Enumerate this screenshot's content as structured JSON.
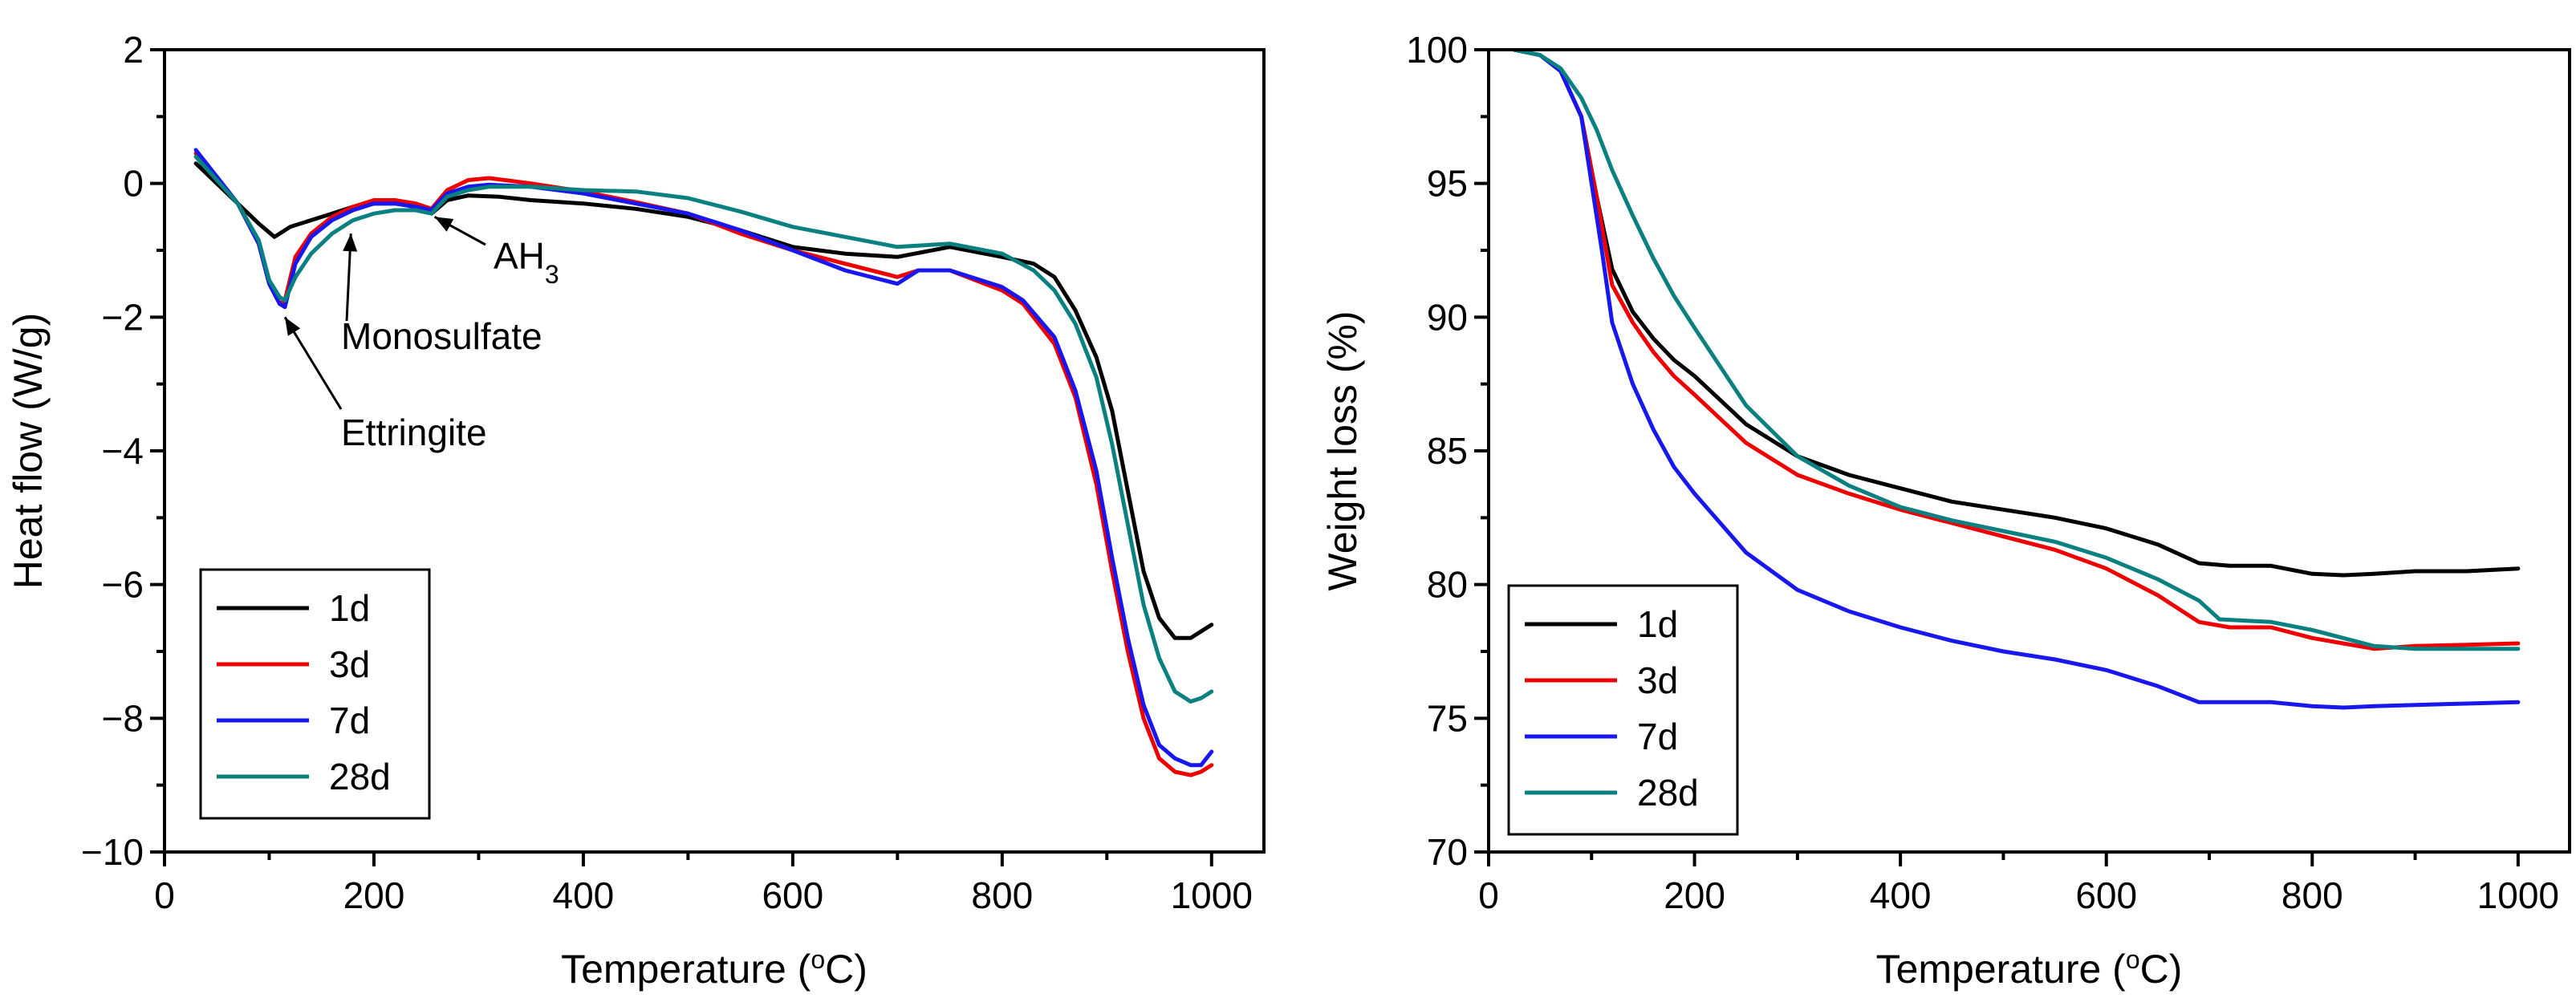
{
  "chart_data": [
    {
      "type": "line",
      "xlabel": "Temperature (°C)",
      "xlabel_pre": "Temperature (",
      "xlabel_sup": "o",
      "xlabel_post": "C)",
      "ylabel": "Heat flow (W/g)",
      "xlim": [
        0,
        1050
      ],
      "ylim": [
        -10,
        2
      ],
      "xticks": [
        0,
        200,
        400,
        600,
        800,
        1000
      ],
      "yticks": [
        2,
        0,
        -2,
        -4,
        -6,
        -8,
        -10
      ],
      "ytick_labels": [
        "2",
        "0",
        "−2",
        "−4",
        "−6",
        "−8",
        "−10"
      ],
      "legend_position": "bottom-left",
      "series": [
        {
          "name": "1d",
          "color": "#000000",
          "x": [
            30,
            50,
            70,
            90,
            105,
            120,
            140,
            160,
            180,
            200,
            220,
            240,
            255,
            270,
            290,
            320,
            350,
            400,
            450,
            500,
            550,
            600,
            650,
            700,
            750,
            800,
            830,
            850,
            870,
            890,
            905,
            920,
            935,
            950,
            965,
            980,
            990,
            1000
          ],
          "y": [
            0.3,
            0.0,
            -0.3,
            -0.6,
            -0.8,
            -0.65,
            -0.55,
            -0.45,
            -0.35,
            -0.3,
            -0.3,
            -0.35,
            -0.45,
            -0.25,
            -0.18,
            -0.2,
            -0.25,
            -0.3,
            -0.38,
            -0.5,
            -0.7,
            -0.95,
            -1.05,
            -1.1,
            -0.95,
            -1.1,
            -1.2,
            -1.4,
            -1.9,
            -2.6,
            -3.4,
            -4.6,
            -5.8,
            -6.5,
            -6.8,
            -6.8,
            -6.7,
            -6.6
          ]
        },
        {
          "name": "3d",
          "color": "#ee0000",
          "x": [
            30,
            50,
            70,
            90,
            100,
            110,
            115,
            125,
            140,
            160,
            180,
            200,
            220,
            240,
            255,
            270,
            290,
            310,
            350,
            400,
            450,
            500,
            550,
            600,
            650,
            700,
            720,
            750,
            800,
            820,
            850,
            870,
            890,
            905,
            920,
            935,
            950,
            965,
            980,
            990,
            1000
          ],
          "y": [
            0.45,
            0.1,
            -0.3,
            -0.9,
            -1.5,
            -1.8,
            -1.75,
            -1.1,
            -0.75,
            -0.5,
            -0.35,
            -0.25,
            -0.25,
            -0.3,
            -0.38,
            -0.1,
            0.05,
            0.08,
            0.0,
            -0.12,
            -0.28,
            -0.45,
            -0.75,
            -1.0,
            -1.2,
            -1.4,
            -1.3,
            -1.3,
            -1.6,
            -1.8,
            -2.4,
            -3.2,
            -4.5,
            -5.8,
            -7.0,
            -8.0,
            -8.6,
            -8.8,
            -8.85,
            -8.8,
            -8.7
          ]
        },
        {
          "name": "7d",
          "color": "#1818ee",
          "x": [
            30,
            50,
            70,
            90,
            100,
            110,
            115,
            125,
            140,
            160,
            180,
            200,
            220,
            240,
            255,
            270,
            290,
            310,
            350,
            400,
            450,
            500,
            550,
            600,
            650,
            700,
            720,
            750,
            800,
            820,
            850,
            870,
            890,
            905,
            920,
            935,
            950,
            965,
            980,
            990,
            1000
          ],
          "y": [
            0.5,
            0.1,
            -0.3,
            -0.9,
            -1.5,
            -1.8,
            -1.85,
            -1.2,
            -0.8,
            -0.55,
            -0.4,
            -0.3,
            -0.3,
            -0.35,
            -0.4,
            -0.15,
            -0.05,
            -0.02,
            -0.05,
            -0.15,
            -0.3,
            -0.45,
            -0.7,
            -1.0,
            -1.3,
            -1.5,
            -1.3,
            -1.3,
            -1.55,
            -1.75,
            -2.3,
            -3.1,
            -4.3,
            -5.6,
            -6.8,
            -7.8,
            -8.4,
            -8.6,
            -8.7,
            -8.7,
            -8.5
          ]
        },
        {
          "name": "28d",
          "color": "#0a8080",
          "x": [
            30,
            50,
            70,
            90,
            100,
            110,
            115,
            125,
            140,
            160,
            180,
            200,
            220,
            240,
            255,
            270,
            290,
            310,
            350,
            400,
            450,
            500,
            550,
            600,
            650,
            700,
            750,
            800,
            830,
            850,
            870,
            890,
            905,
            920,
            935,
            950,
            965,
            980,
            990,
            1000
          ],
          "y": [
            0.4,
            0.05,
            -0.3,
            -0.85,
            -1.45,
            -1.7,
            -1.75,
            -1.4,
            -1.05,
            -0.75,
            -0.55,
            -0.45,
            -0.4,
            -0.4,
            -0.45,
            -0.2,
            -0.1,
            -0.05,
            -0.05,
            -0.1,
            -0.12,
            -0.22,
            -0.42,
            -0.65,
            -0.8,
            -0.95,
            -0.9,
            -1.05,
            -1.3,
            -1.6,
            -2.1,
            -2.9,
            -3.9,
            -5.1,
            -6.3,
            -7.1,
            -7.6,
            -7.75,
            -7.7,
            -7.6
          ]
        }
      ],
      "annotations": [
        {
          "text": "Ettringite",
          "sub": "",
          "arrow_to": [
            115,
            -2.0
          ]
        },
        {
          "text": "Monosulfate",
          "sub": "",
          "arrow_to": [
            178,
            -0.75
          ]
        },
        {
          "text": "AH",
          "sub": "3",
          "arrow_to": [
            258,
            -0.5
          ]
        }
      ]
    },
    {
      "type": "line",
      "xlabel": "Temperature (°C)",
      "xlabel_pre": "Temperature (",
      "xlabel_sup": "o",
      "xlabel_post": "C)",
      "ylabel": "Weight loss (%)",
      "xlim": [
        0,
        1050
      ],
      "ylim": [
        70,
        100
      ],
      "xticks": [
        0,
        200,
        400,
        600,
        800,
        1000
      ],
      "yticks": [
        100,
        95,
        90,
        85,
        80,
        75,
        70
      ],
      "ytick_labels": [
        "100",
        "95",
        "90",
        "85",
        "80",
        "75",
        "70"
      ],
      "legend_position": "bottom-left",
      "series": [
        {
          "name": "1d",
          "color": "#000000",
          "x": [
            25,
            50,
            70,
            90,
            105,
            120,
            140,
            160,
            180,
            200,
            250,
            300,
            350,
            400,
            450,
            500,
            550,
            600,
            650,
            690,
            720,
            760,
            800,
            830,
            860,
            900,
            950,
            1000
          ],
          "y": [
            100,
            99.8,
            99.2,
            97.5,
            94.5,
            91.8,
            90.2,
            89.2,
            88.4,
            87.8,
            86.0,
            84.8,
            84.1,
            83.6,
            83.1,
            82.8,
            82.5,
            82.1,
            81.5,
            80.8,
            80.7,
            80.7,
            80.4,
            80.35,
            80.4,
            80.5,
            80.5,
            80.6
          ]
        },
        {
          "name": "3d",
          "color": "#ee0000",
          "x": [
            25,
            50,
            70,
            90,
            105,
            120,
            140,
            160,
            180,
            200,
            250,
            300,
            350,
            400,
            450,
            500,
            550,
            600,
            650,
            690,
            720,
            760,
            800,
            830,
            860,
            900,
            950,
            1000
          ],
          "y": [
            100,
            99.8,
            99.2,
            97.5,
            94.5,
            91.2,
            89.8,
            88.7,
            87.8,
            87.1,
            85.3,
            84.1,
            83.4,
            82.8,
            82.3,
            81.8,
            81.3,
            80.6,
            79.6,
            78.6,
            78.4,
            78.4,
            78.0,
            77.8,
            77.6,
            77.7,
            77.75,
            77.8
          ]
        },
        {
          "name": "7d",
          "color": "#1818ee",
          "x": [
            25,
            50,
            70,
            90,
            100,
            110,
            120,
            140,
            160,
            180,
            200,
            250,
            300,
            350,
            400,
            450,
            500,
            550,
            600,
            650,
            690,
            720,
            760,
            800,
            830,
            860,
            900,
            950,
            1000
          ],
          "y": [
            100,
            99.8,
            99.2,
            97.5,
            95.0,
            92.5,
            89.8,
            87.5,
            85.8,
            84.4,
            83.4,
            81.2,
            79.8,
            79.0,
            78.4,
            77.9,
            77.5,
            77.2,
            76.8,
            76.2,
            75.6,
            75.6,
            75.6,
            75.45,
            75.4,
            75.45,
            75.5,
            75.55,
            75.6
          ]
        },
        {
          "name": "28d",
          "color": "#0a8080",
          "x": [
            25,
            50,
            70,
            90,
            105,
            120,
            140,
            160,
            180,
            200,
            250,
            300,
            350,
            400,
            450,
            500,
            550,
            600,
            650,
            690,
            710,
            760,
            800,
            830,
            860,
            900,
            950,
            1000
          ],
          "y": [
            100,
            99.8,
            99.3,
            98.2,
            97.0,
            95.5,
            93.8,
            92.2,
            90.8,
            89.6,
            86.7,
            84.8,
            83.7,
            82.9,
            82.4,
            82.0,
            81.6,
            81.0,
            80.2,
            79.4,
            78.7,
            78.6,
            78.3,
            78.0,
            77.7,
            77.6,
            77.6,
            77.6
          ]
        }
      ]
    }
  ]
}
